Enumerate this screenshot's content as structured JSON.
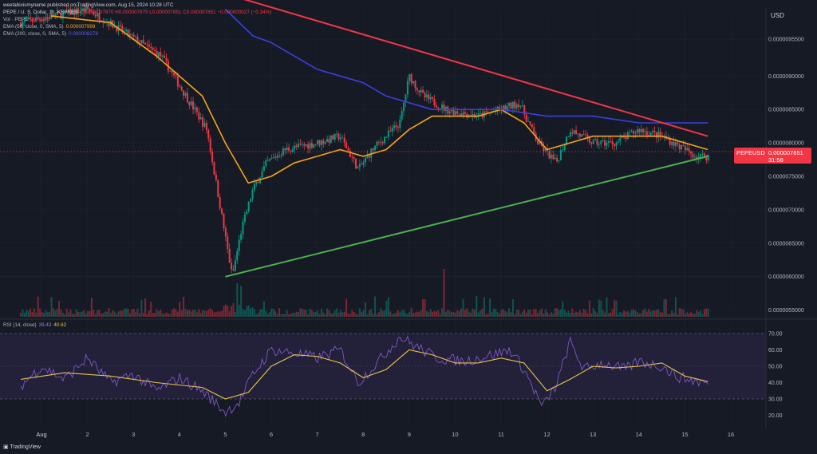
{
  "publisher_line": "weetabixismyname published on TradingView.com, Aug 15, 2024 10:28 UTC",
  "legend": {
    "symbol_line": {
      "label": "PEPE / U. S. Dollar, 1h, KRAKEN",
      "ohlc": "O0.000007870 H0.000007875 L0.000007851 C0.000007851 −0.000000027 (−0.34%)"
    },
    "vol_line": {
      "label": "Vol · PEPE",
      "value": "96.029M"
    },
    "ema50_line": {
      "label": "EMA (50, close, 0, SMA, 5)",
      "value": "0.000007999"
    },
    "ema200_line": {
      "label": "EMA (200, close, 0, SMA, 5)",
      "value": "0.000008278"
    }
  },
  "currency": "USD",
  "price_tag": {
    "symbol": "PEPEUSD",
    "price": "0.000007851",
    "countdown": "31:58"
  },
  "rsi_header": {
    "label": "RSI (14, close)",
    "rsi": "39.43",
    "ma": "40.62"
  },
  "footer": {
    "brand": "TradingView"
  },
  "colors": {
    "bg": "#161a25",
    "up": "#089981",
    "down": "#f23645",
    "ema50": "#f7a21b",
    "ema200": "#3a3fe0",
    "resistance": "#f23645",
    "support": "#4caf50",
    "rsi": "#7e57c2",
    "rsi_ma": "#e8c34a"
  },
  "chart_data": [
    {
      "type": "candlestick",
      "title": "PEPE / U. S. Dollar, 1h, KRAKEN",
      "x_tick_labels": [
        "Aug",
        "2",
        "3",
        "4",
        "5",
        "6",
        "7",
        "8",
        "9",
        "10",
        "11",
        "12",
        "13",
        "14",
        "15",
        "16"
      ],
      "y_tick_labels": [
        "0.0000095500",
        "0.0000090000",
        "0.0000085000",
        "0.0000080000",
        "0.0000075000",
        "0.0000070000",
        "0.0000065000",
        "0.0000060000",
        "0.0000055000"
      ],
      "ylim": [
        5.4e-06,
        1e-05
      ],
      "keypoints": [
        [
          0.55,
          9.8e-06
        ],
        [
          2.0,
          1e-05
        ],
        [
          2.7,
          9.7e-06
        ],
        [
          3.6,
          9.3e-06
        ],
        [
          4.6,
          8.2e-06
        ],
        [
          5.0,
          6.6e-06
        ],
        [
          5.15,
          6e-06
        ],
        [
          5.35,
          6.7e-06
        ],
        [
          5.6,
          7.3e-06
        ],
        [
          5.9,
          7.7e-06
        ],
        [
          6.3,
          7.9e-06
        ],
        [
          7.0,
          8e-06
        ],
        [
          7.5,
          8.1e-06
        ],
        [
          7.9,
          7.6e-06
        ],
        [
          8.2,
          7.9e-06
        ],
        [
          8.8,
          8.3e-06
        ],
        [
          9.0,
          9e-06
        ],
        [
          9.3,
          8.7e-06
        ],
        [
          9.8,
          8.5e-06
        ],
        [
          10.5,
          8.4e-06
        ],
        [
          11.0,
          8.5e-06
        ],
        [
          11.4,
          8.6e-06
        ],
        [
          11.8,
          8e-06
        ],
        [
          12.2,
          7.7e-06
        ],
        [
          12.5,
          8.2e-06
        ],
        [
          13.0,
          8e-06
        ],
        [
          13.5,
          8e-06
        ],
        [
          14.0,
          8.2e-06
        ],
        [
          14.5,
          8.1e-06
        ],
        [
          15.0,
          7.9e-06
        ],
        [
          15.25,
          7.8e-06
        ],
        [
          15.5,
          7.8e-06
        ]
      ],
      "series": [
        {
          "name": "EMA (50, close, 0, SMA, 5)",
          "x": [
            1.2,
            2.5,
            3.5,
            4.5,
            5.0,
            5.5,
            6.0,
            6.5,
            7.0,
            7.5,
            8.0,
            8.5,
            9.0,
            9.5,
            10.0,
            10.5,
            11.0,
            11.5,
            12.0,
            12.5,
            13.0,
            13.5,
            14.0,
            14.5,
            15.0,
            15.5
          ],
          "values": [
            9.9e-06,
            9.8e-06,
            9.3e-06,
            8.7e-06,
            8e-06,
            7.4e-06,
            7.5e-06,
            7.7e-06,
            7.8e-06,
            7.9e-06,
            7.8e-06,
            7.9e-06,
            8.2e-06,
            8.4e-06,
            8.4e-06,
            8.4e-06,
            8.5e-06,
            8.3e-06,
            7.9e-06,
            8e-06,
            8.1e-06,
            8.1e-06,
            8.1e-06,
            8.1e-06,
            8e-06,
            7.9e-06
          ]
        },
        {
          "name": "EMA (200, close, 0, SMA, 5)",
          "x": [
            5.0,
            5.6,
            6.0,
            6.5,
            7.0,
            7.5,
            8.0,
            8.5,
            9.0,
            9.5,
            10.0,
            11.0,
            12.0,
            13.0,
            14.0,
            14.5,
            15.0,
            15.5
          ],
          "values": [
            1e-05,
            9.6e-06,
            9.5e-06,
            9.3e-06,
            9.1e-06,
            9e-06,
            8.9e-06,
            8.7e-06,
            8.6e-06,
            8.5e-06,
            8.5e-06,
            8.5e-06,
            8.4e-06,
            8.4e-06,
            8.3e-06,
            8.3e-06,
            8.3e-06,
            8.3e-06
          ]
        }
      ],
      "trendlines": [
        {
          "name": "resistance",
          "from": [
            5.15,
            1.02e-05
          ],
          "to": [
            15.5,
            8.1e-06
          ]
        },
        {
          "name": "support",
          "from": [
            5.0,
            6e-06
          ],
          "to": [
            15.5,
            7.8e-06
          ]
        }
      ],
      "volume": {
        "max_label": "96.029M"
      }
    },
    {
      "type": "line",
      "title": "RSI (14, close)",
      "y_tick_labels": [
        "70.00",
        "60.00",
        "50.00",
        "40.00",
        "30.00",
        "20.00"
      ],
      "ylim": [
        15,
        76
      ],
      "bands": [
        70,
        30
      ],
      "keypoints": [
        [
          0.55,
          38
        ],
        [
          1.0,
          50
        ],
        [
          1.5,
          42
        ],
        [
          2.0,
          55
        ],
        [
          2.5,
          40
        ],
        [
          3.0,
          45
        ],
        [
          3.5,
          35
        ],
        [
          4.0,
          43
        ],
        [
          4.5,
          35
        ],
        [
          5.0,
          22
        ],
        [
          5.3,
          28
        ],
        [
          5.6,
          45
        ],
        [
          6.0,
          60
        ],
        [
          6.5,
          58
        ],
        [
          7.0,
          55
        ],
        [
          7.5,
          60
        ],
        [
          7.9,
          40
        ],
        [
          8.3,
          52
        ],
        [
          8.8,
          68
        ],
        [
          9.1,
          63
        ],
        [
          9.6,
          55
        ],
        [
          10.2,
          53
        ],
        [
          10.8,
          57
        ],
        [
          11.2,
          60
        ],
        [
          11.5,
          48
        ],
        [
          11.9,
          25
        ],
        [
          12.2,
          38
        ],
        [
          12.5,
          65
        ],
        [
          12.8,
          48
        ],
        [
          13.2,
          52
        ],
        [
          13.7,
          48
        ],
        [
          14.0,
          53
        ],
        [
          14.5,
          50
        ],
        [
          14.8,
          44
        ],
        [
          15.2,
          41
        ],
        [
          15.5,
          39.4
        ]
      ],
      "series": [
        {
          "name": "RSI-based MA",
          "x": [
            0.55,
            1.5,
            2.5,
            3.5,
            4.5,
            5.0,
            5.5,
            6.0,
            6.5,
            7.0,
            7.5,
            8.0,
            8.5,
            9.0,
            9.5,
            10.0,
            10.5,
            11.0,
            11.5,
            12.0,
            12.5,
            13.0,
            13.5,
            14.0,
            14.5,
            15.0,
            15.5
          ],
          "values": [
            42,
            46,
            44,
            40,
            37,
            30,
            34,
            50,
            57,
            56,
            52,
            43,
            48,
            60,
            57,
            52,
            52,
            55,
            52,
            35,
            42,
            50,
            49,
            50,
            52,
            44,
            40.6
          ]
        }
      ]
    }
  ]
}
